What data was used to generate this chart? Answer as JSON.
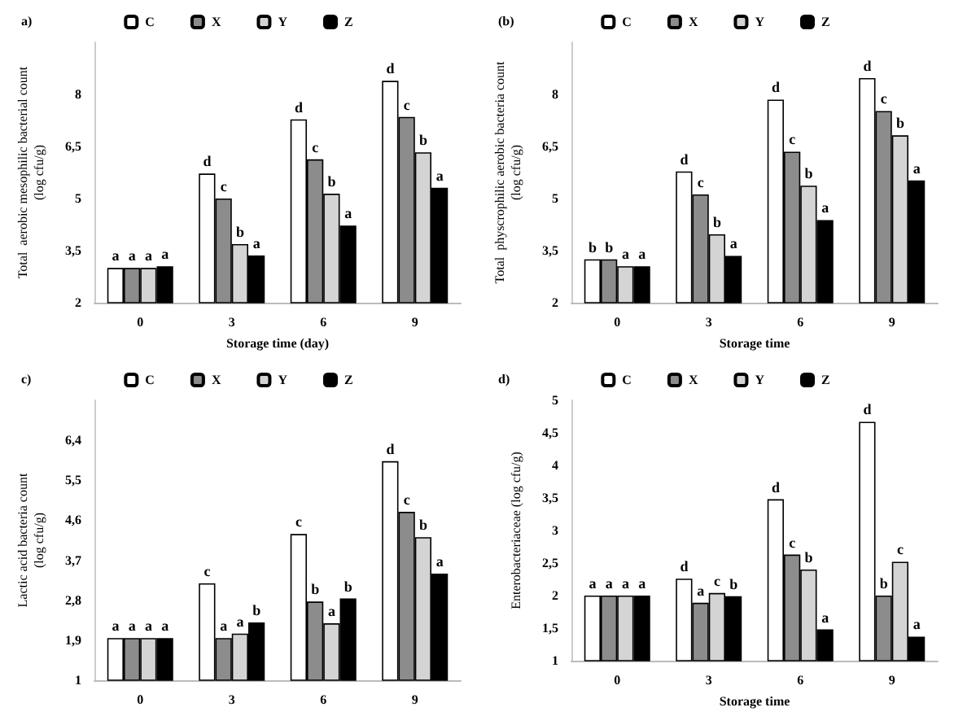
{
  "chart_data": [
    {
      "type": "bar",
      "title": "a)",
      "xlabel": "Storage time (day)",
      "ylabel": "Total  aerobic mesophilic bacterial count\n(log cfu/g)",
      "categories": [
        "0",
        "3",
        "6",
        "9"
      ],
      "ylim": [
        2,
        9.5
      ],
      "yticks": [
        2,
        {
          "value": 3.5,
          "label": "3,5"
        },
        5,
        {
          "value": 6.5,
          "label": "6,5"
        },
        8
      ],
      "legend": "top",
      "grid": false,
      "series": [
        {
          "name": "C",
          "color": "#ffffff",
          "values": [
            3.0,
            5.72,
            7.28,
            8.39
          ],
          "value_labels": [
            "a",
            "d",
            "d",
            "d"
          ]
        },
        {
          "name": "X",
          "color": "#8c8c8c",
          "values": [
            3.0,
            5.0,
            6.13,
            7.35
          ],
          "value_labels": [
            "a",
            "c",
            "c",
            "c"
          ]
        },
        {
          "name": "Y",
          "color": "#d4d4d4",
          "values": [
            3.0,
            3.69,
            5.14,
            6.33
          ],
          "value_labels": [
            "a",
            "b",
            "b",
            "b"
          ]
        },
        {
          "name": "Z",
          "color": "#000000",
          "values": [
            3.05,
            3.36,
            4.22,
            5.31
          ],
          "value_labels": [
            "a",
            "a",
            "a",
            "a"
          ]
        }
      ]
    },
    {
      "type": "bar",
      "title": "(b)",
      "xlabel": "Storage time",
      "ylabel": "Total  physcrophilic aerobic bacteria count\n(log cfu/g)",
      "categories": [
        "0",
        "3",
        "6",
        "9"
      ],
      "ylim": [
        2,
        9.5
      ],
      "yticks": [
        2,
        {
          "value": 3.5,
          "label": "3,5"
        },
        5,
        {
          "value": 6.5,
          "label": "6,5"
        },
        8
      ],
      "legend": "top",
      "grid": false,
      "series": [
        {
          "name": "C",
          "color": "#ffffff",
          "values": [
            3.25,
            5.78,
            7.85,
            8.47
          ],
          "value_labels": [
            "b",
            "d",
            "d",
            "d"
          ]
        },
        {
          "name": "X",
          "color": "#8c8c8c",
          "values": [
            3.25,
            5.12,
            6.35,
            7.52
          ],
          "value_labels": [
            "b",
            "c",
            "c",
            "c"
          ]
        },
        {
          "name": "Y",
          "color": "#d4d4d4",
          "values": [
            3.05,
            3.97,
            5.37,
            6.82
          ],
          "value_labels": [
            "a",
            "b",
            "b",
            "b"
          ]
        },
        {
          "name": "Z",
          "color": "#000000",
          "values": [
            3.05,
            3.35,
            4.38,
            5.52
          ],
          "value_labels": [
            "a",
            "a",
            "a",
            "a"
          ]
        }
      ]
    },
    {
      "type": "bar",
      "title": "c)",
      "ylabel": "Lactic acid bacteria count\n(log cfu/g)",
      "categories": [
        "0",
        "3",
        "6",
        "9"
      ],
      "ylim": [
        1,
        7.3
      ],
      "yticks": [
        1,
        {
          "value": 1.9,
          "label": "1,9"
        },
        {
          "value": 2.8,
          "label": "2,8"
        },
        {
          "value": 3.7,
          "label": "3,7"
        },
        {
          "value": 4.6,
          "label": "4,6"
        },
        {
          "value": 5.5,
          "label": "5,5"
        },
        {
          "value": 6.4,
          "label": "6,4"
        }
      ],
      "legend": "top",
      "grid": false,
      "series": [
        {
          "name": "C",
          "color": "#ffffff",
          "values": [
            1.95,
            3.18,
            4.29,
            5.93
          ],
          "value_labels": [
            "a",
            "c",
            "c",
            "d"
          ]
        },
        {
          "name": "X",
          "color": "#8c8c8c",
          "values": [
            1.95,
            1.95,
            2.77,
            4.79
          ],
          "value_labels": [
            "a",
            "a",
            "b",
            "c"
          ]
        },
        {
          "name": "Y",
          "color": "#d4d4d4",
          "values": [
            1.95,
            2.05,
            2.28,
            4.22
          ],
          "value_labels": [
            "a",
            "a",
            "a",
            "b"
          ]
        },
        {
          "name": "Z",
          "color": "#000000",
          "values": [
            1.95,
            2.3,
            2.84,
            3.4
          ],
          "value_labels": [
            "a",
            "b",
            "b",
            "a"
          ]
        }
      ]
    },
    {
      "type": "bar",
      "title": "d)",
      "xlabel": "Storage time",
      "ylabel": "Enterobacteriaceae (log cfu/g)",
      "categories": [
        "0",
        "3",
        "6",
        "9"
      ],
      "ylim": [
        1,
        5
      ],
      "yticks": [
        1,
        {
          "value": 1.5,
          "label": "1,5"
        },
        2,
        {
          "value": 2.5,
          "label": "2,5"
        },
        3,
        {
          "value": 3.5,
          "label": "3,5"
        },
        4,
        {
          "value": 4.5,
          "label": "4,5"
        },
        5
      ],
      "legend": "top",
      "grid": false,
      "series": [
        {
          "name": "C",
          "color": "#ffffff",
          "values": [
            2.0,
            2.26,
            3.48,
            4.67
          ],
          "value_labels": [
            "a",
            "d",
            "d",
            "d"
          ]
        },
        {
          "name": "X",
          "color": "#8c8c8c",
          "values": [
            2.0,
            1.89,
            2.63,
            2.0
          ],
          "value_labels": [
            "a",
            "a",
            "c",
            "b"
          ]
        },
        {
          "name": "Y",
          "color": "#d4d4d4",
          "values": [
            2.0,
            2.04,
            2.4,
            2.52
          ],
          "value_labels": [
            "a",
            "c",
            "b",
            "c"
          ]
        },
        {
          "name": "Z",
          "color": "#000000",
          "values": [
            2.0,
            1.99,
            1.48,
            1.37
          ],
          "value_labels": [
            "a",
            "b",
            "a",
            "a"
          ]
        }
      ]
    }
  ]
}
